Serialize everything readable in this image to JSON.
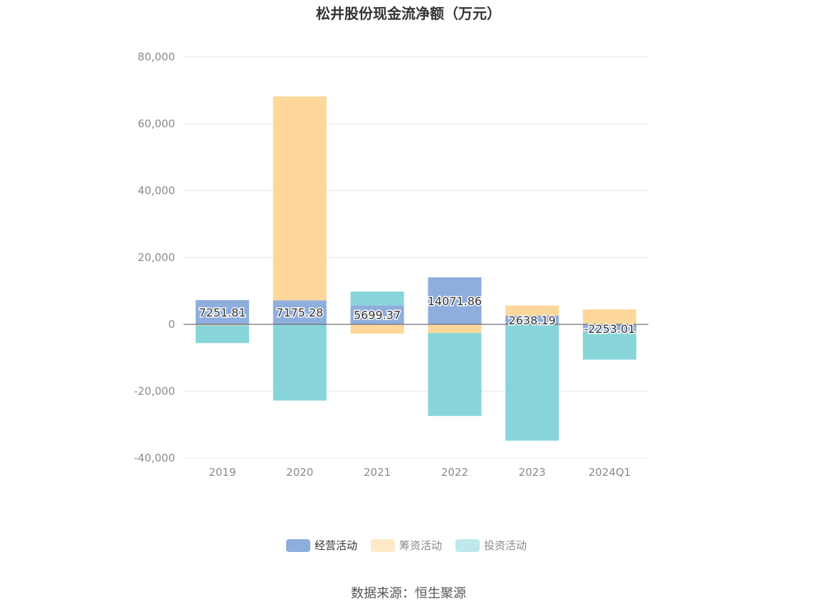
{
  "chart_data": {
    "type": "bar",
    "stacked": true,
    "title": "松井股份现金流净额（万元）",
    "categories": [
      "2019",
      "2020",
      "2021",
      "2022",
      "2023",
      "2024Q1"
    ],
    "series": [
      {
        "name": "经营活动",
        "color": "#8eaedd",
        "values": [
          7251.81,
          7175.28,
          5699.37,
          14071.86,
          2638.19,
          -2253.01
        ]
      },
      {
        "name": "筹资活动",
        "color": "#fed89b",
        "values": [
          -300,
          61000,
          -2800,
          -2600,
          3000,
          4500
        ]
      },
      {
        "name": "投资活动",
        "color": "#88d5d9",
        "values": [
          -5300,
          -22800,
          4100,
          -24800,
          -34800,
          -8300
        ]
      }
    ],
    "data_labels": [
      "7251.81",
      "7175.28",
      "5699.37",
      "14071.86",
      "2638.19",
      "-2253.01"
    ],
    "ylim": [
      -40000,
      80000
    ],
    "yticks": [
      -40000,
      -20000,
      0,
      20000,
      40000,
      60000,
      80000
    ],
    "ytick_labels": [
      "-40,000",
      "-20,000",
      "0",
      "20,000",
      "40,000",
      "60,000",
      "80,000"
    ],
    "grid": true,
    "legend_position": "bottom-center",
    "legend_active_color": "#333333",
    "legend_inactive_color": "#8a8a8a"
  },
  "source_text": "数据来源：恒生聚源"
}
